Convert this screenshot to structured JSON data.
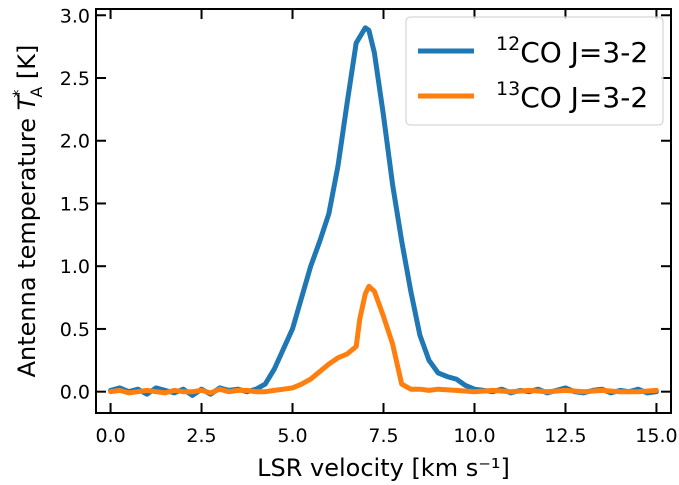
{
  "chart_data": {
    "type": "line",
    "xlabel": "LSR velocity [km s⁻¹]",
    "ylabel_prefix": "Antenna temperature ",
    "ylabel_symbol": "T",
    "ylabel_sub": "A",
    "ylabel_sup": "*",
    "ylabel_unit": " [K]",
    "xlim": [
      -0.4,
      15.4
    ],
    "ylim": [
      -0.17,
      3.05
    ],
    "xticks": [
      0.0,
      2.5,
      5.0,
      7.5,
      10.0,
      12.5,
      15.0
    ],
    "xtick_labels": [
      "0.0",
      "2.5",
      "5.0",
      "7.5",
      "10.0",
      "12.5",
      "15.0"
    ],
    "yticks": [
      0.0,
      0.5,
      1.0,
      1.5,
      2.0,
      2.5,
      3.0
    ],
    "ytick_labels": [
      "0.0",
      "0.5",
      "1.0",
      "1.5",
      "2.0",
      "2.5",
      "3.0"
    ],
    "grid": false,
    "legend_position": "top-right",
    "series": [
      {
        "name": "CO J=3-2",
        "name_sup": "12",
        "color": "#1f77b4",
        "x": [
          0.0,
          0.25,
          0.5,
          0.75,
          1.0,
          1.25,
          1.5,
          1.75,
          2.0,
          2.25,
          2.5,
          2.75,
          3.0,
          3.25,
          3.5,
          3.75,
          4.0,
          4.25,
          4.5,
          4.75,
          5.0,
          5.25,
          5.5,
          5.75,
          6.0,
          6.25,
          6.5,
          6.75,
          7.0,
          7.1,
          7.25,
          7.5,
          7.75,
          8.0,
          8.25,
          8.5,
          8.75,
          9.0,
          9.25,
          9.5,
          9.75,
          10.0,
          10.25,
          10.5,
          10.75,
          11.0,
          11.25,
          11.5,
          11.75,
          12.0,
          12.25,
          12.5,
          12.75,
          13.0,
          13.25,
          13.5,
          13.75,
          14.0,
          14.25,
          14.5,
          14.75,
          15.0
        ],
        "y": [
          0.01,
          0.03,
          0.0,
          0.02,
          -0.02,
          0.03,
          0.01,
          -0.01,
          0.02,
          -0.03,
          0.02,
          -0.02,
          0.03,
          0.01,
          0.02,
          0.0,
          0.02,
          0.06,
          0.18,
          0.34,
          0.5,
          0.75,
          1.0,
          1.2,
          1.42,
          1.8,
          2.3,
          2.78,
          2.9,
          2.88,
          2.7,
          2.2,
          1.65,
          1.2,
          0.8,
          0.45,
          0.25,
          0.15,
          0.12,
          0.1,
          0.05,
          0.02,
          0.01,
          0.0,
          0.02,
          -0.01,
          0.01,
          0.0,
          0.02,
          -0.01,
          0.01,
          0.03,
          0.0,
          -0.01,
          0.01,
          0.02,
          -0.01,
          0.01,
          0.0,
          0.02,
          -0.01,
          0.0
        ]
      },
      {
        "name": "CO J=3-2",
        "name_sup": "13",
        "color": "#ff7f0e",
        "x": [
          0.0,
          0.25,
          0.5,
          0.75,
          1.0,
          1.25,
          1.5,
          1.75,
          2.0,
          2.25,
          2.5,
          2.75,
          3.0,
          3.25,
          3.5,
          3.75,
          4.0,
          4.25,
          4.5,
          4.75,
          5.0,
          5.25,
          5.5,
          5.75,
          6.0,
          6.25,
          6.5,
          6.75,
          6.85,
          7.0,
          7.1,
          7.25,
          7.5,
          7.75,
          8.0,
          8.25,
          8.5,
          8.75,
          9.0,
          9.5,
          10.0,
          10.5,
          11.0,
          11.5,
          12.0,
          12.5,
          13.0,
          13.5,
          14.0,
          14.5,
          15.0
        ],
        "y": [
          0.0,
          0.01,
          -0.01,
          0.0,
          0.01,
          0.0,
          -0.01,
          0.01,
          0.0,
          0.0,
          0.01,
          -0.01,
          0.02,
          0.0,
          0.01,
          0.01,
          0.0,
          0.0,
          0.01,
          0.02,
          0.03,
          0.06,
          0.1,
          0.16,
          0.22,
          0.27,
          0.3,
          0.36,
          0.58,
          0.78,
          0.84,
          0.8,
          0.6,
          0.38,
          0.06,
          0.02,
          0.02,
          0.01,
          0.02,
          0.01,
          0.0,
          0.01,
          0.0,
          0.01,
          0.0,
          0.01,
          0.0,
          0.01,
          0.0,
          0.0,
          0.01
        ]
      }
    ]
  }
}
